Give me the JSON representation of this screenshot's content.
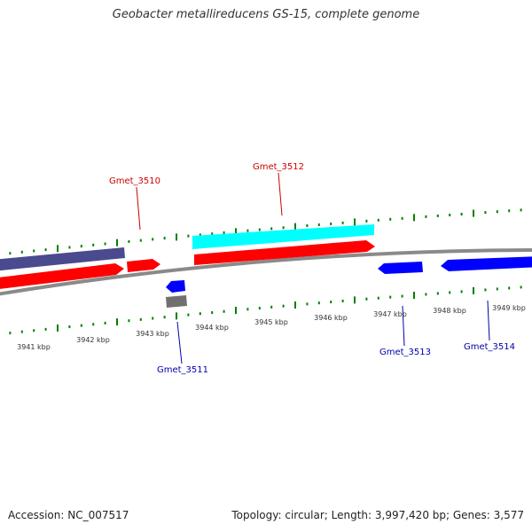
{
  "title": "Geobacter metallireducens GS-15, complete genome",
  "footer": {
    "accession": "Accession: NC_007517",
    "stats": "Topology: circular; Length: 3,997,420 bp; Genes: 3,577"
  },
  "colors": {
    "cds": "#ff0000",
    "cds_highlight": "#00ffff",
    "cds_neg": "#0000ff",
    "other": "#4a4a8f",
    "pseudo": "#707070",
    "ticks": "#008000",
    "backbone": "#8a8a8a",
    "label_forward": "#cc0000",
    "label_reverse": "#0000aa",
    "tick_label": "#333333"
  },
  "scale": {
    "unit": "kbp",
    "labels": [
      "3941 kbp",
      "3942 kbp",
      "3943 kbp",
      "3944 kbp",
      "3945 kbp",
      "3946 kbp",
      "3947 kbp",
      "3948 kbp",
      "3949 kbp"
    ]
  },
  "gene_labels": {
    "forward": [
      "Gmet_3510",
      "Gmet_3512"
    ],
    "reverse": [
      "Gmet_3511",
      "Gmet_3513",
      "Gmet_3514"
    ]
  }
}
